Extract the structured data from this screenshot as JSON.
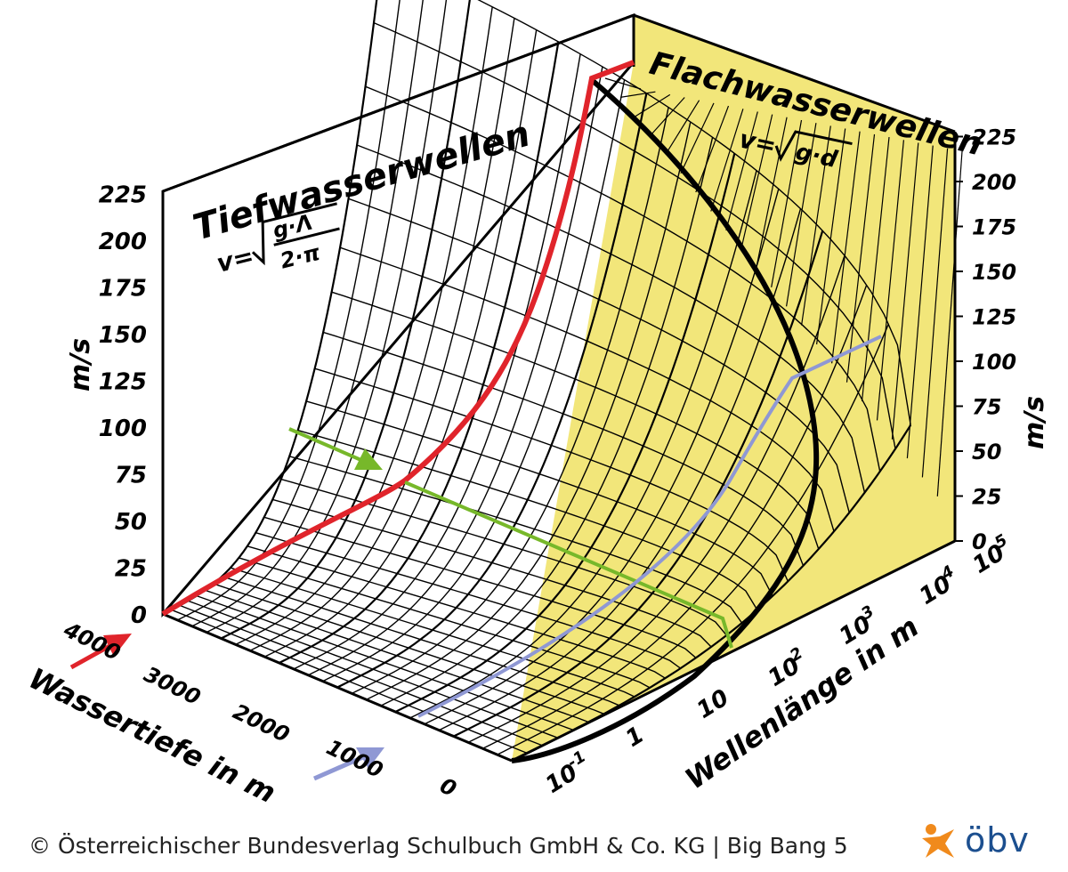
{
  "deep_water": {
    "title": "Tiefwasserwellen",
    "formula_v": "v=",
    "formula_num": "g·Λ",
    "formula_den": "2·π"
  },
  "shallow_water": {
    "title": "Flachwasserwellen",
    "formula_v": "v=",
    "formula_inner": "g·d"
  },
  "axes": {
    "left_unit": "m/s",
    "right_unit": "m/s",
    "left_ticks": [
      "0",
      "25",
      "50",
      "75",
      "100",
      "125",
      "150",
      "175",
      "200",
      "225"
    ],
    "right_ticks": [
      "0",
      "25",
      "50",
      "75",
      "100",
      "125",
      "150",
      "175",
      "200",
      "225"
    ],
    "depth_label": "Wassertiefe in m",
    "depth_ticks": [
      "0",
      "1000",
      "2000",
      "3000",
      "4000"
    ],
    "wavelength_label": "Wellenlänge in m",
    "wavelength_ticks": [
      {
        "base": "10",
        "exp": "-1"
      },
      {
        "base": "1",
        "exp": ""
      },
      {
        "base": "10",
        "exp": ""
      },
      {
        "base": "10",
        "exp": "2"
      },
      {
        "base": "10",
        "exp": "3"
      },
      {
        "base": "10",
        "exp": "4"
      },
      {
        "base": "10",
        "exp": "5"
      }
    ]
  },
  "colors": {
    "yellow_panel": "#f2e67a",
    "red_curve": "#e0242b",
    "green_line": "#77b82a",
    "blue_line": "#8f98d4",
    "grid": "#000000"
  },
  "footer": {
    "copyright": "© Österreichischer Bundesverlag Schulbuch GmbH & Co. KG |  Big Bang 5",
    "logo": "öbv",
    "logo_icon": "star-figure-icon"
  }
}
